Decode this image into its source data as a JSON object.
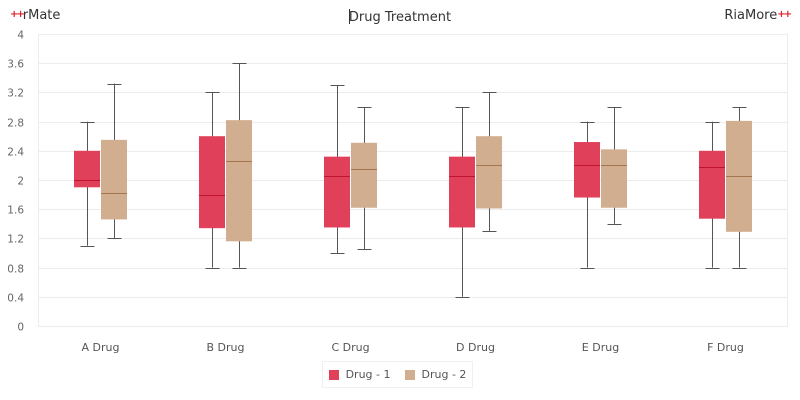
{
  "header": {
    "brand_left": "rMate",
    "brand_right": "RiaMore",
    "brand_mark": "++"
  },
  "colors": {
    "drug1_fill": "#e0405a",
    "drug1_median": "#c0142e",
    "drug2_fill": "#d2ae90",
    "drug2_median": "#a4764f",
    "whisker": "#555555",
    "grid": "#ececec"
  },
  "chart_data": {
    "type": "boxplot",
    "title": "Drug Treatment",
    "xlabel": "",
    "ylabel": "",
    "ylim": [
      0,
      4
    ],
    "ytick_step": 0.4,
    "yticks": [
      "0",
      "0.4",
      "0.8",
      "1.2",
      "1.6",
      "2",
      "2.4",
      "2.8",
      "3.2",
      "3.6",
      "4"
    ],
    "grid": true,
    "legend_position": "bottom-center",
    "categories": [
      "A Drug",
      "B Drug",
      "C Drug",
      "D Drug",
      "E Drug",
      "F Drug"
    ],
    "series": [
      {
        "name": "Drug - 1",
        "boxes": [
          {
            "min": 1.1,
            "q1": 1.9,
            "median": 2.0,
            "q3": 2.4,
            "max": 2.8
          },
          {
            "min": 0.8,
            "q1": 1.34,
            "median": 1.8,
            "q3": 2.6,
            "max": 3.2
          },
          {
            "min": 1.0,
            "q1": 1.35,
            "median": 2.05,
            "q3": 2.32,
            "max": 3.3
          },
          {
            "min": 0.4,
            "q1": 1.35,
            "median": 2.05,
            "q3": 2.32,
            "max": 3.0
          },
          {
            "min": 0.8,
            "q1": 1.76,
            "median": 2.2,
            "q3": 2.52,
            "max": 2.8
          },
          {
            "min": 0.8,
            "q1": 1.47,
            "median": 2.18,
            "q3": 2.4,
            "max": 2.8
          }
        ]
      },
      {
        "name": "Drug - 2",
        "boxes": [
          {
            "min": 1.2,
            "q1": 1.46,
            "median": 1.82,
            "q3": 2.55,
            "max": 3.32
          },
          {
            "min": 0.8,
            "q1": 1.16,
            "median": 2.26,
            "q3": 2.82,
            "max": 3.6
          },
          {
            "min": 1.05,
            "q1": 1.62,
            "median": 2.15,
            "q3": 2.51,
            "max": 3.0
          },
          {
            "min": 1.3,
            "q1": 1.61,
            "median": 2.2,
            "q3": 2.6,
            "max": 3.2
          },
          {
            "min": 1.4,
            "q1": 1.62,
            "median": 2.2,
            "q3": 2.42,
            "max": 3.0
          },
          {
            "min": 0.8,
            "q1": 1.29,
            "median": 2.05,
            "q3": 2.81,
            "max": 3.0
          }
        ]
      }
    ]
  }
}
